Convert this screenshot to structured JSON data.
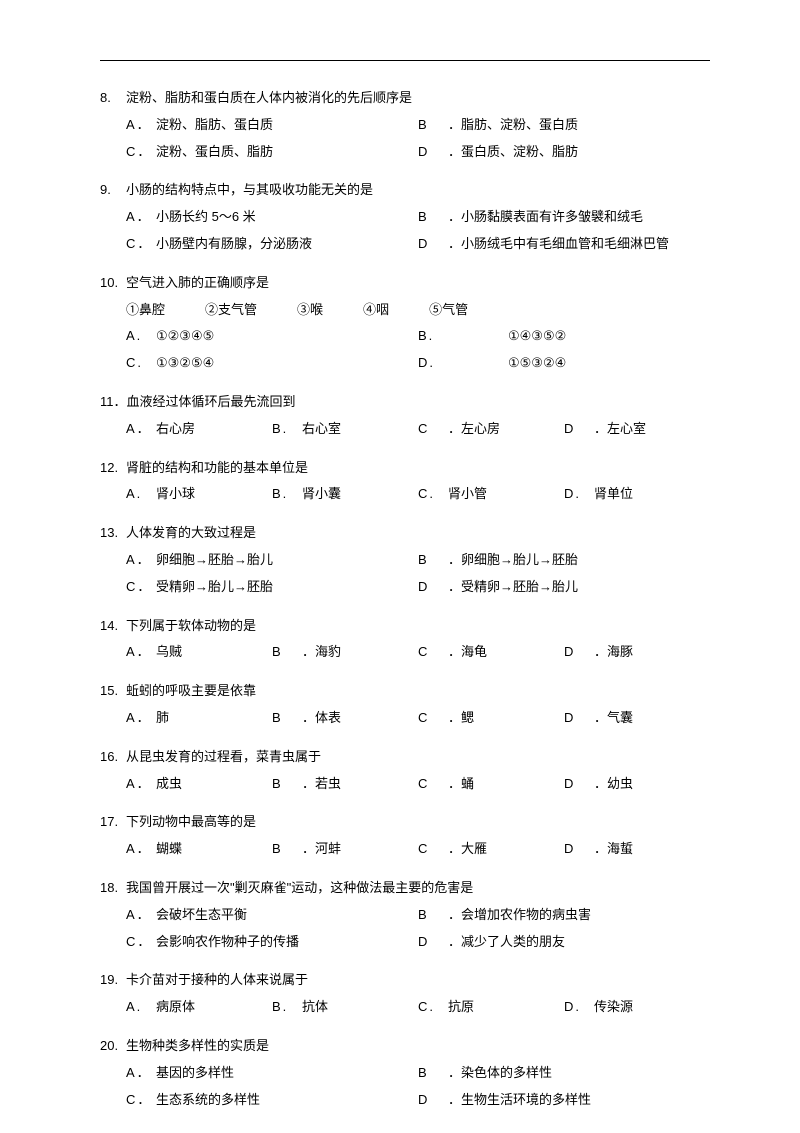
{
  "text_color": "#000000",
  "background_color": "#ffffff",
  "font_size": 13,
  "questions": [
    {
      "num": "8.",
      "stem": "淀粉、脂肪和蛋白质在人体内被消化的先后顺序是",
      "layout": "2col",
      "opts": [
        {
          "l": "A．",
          "t": "淀粉、脂肪、蛋白质"
        },
        {
          "l": "B",
          "t": "．脂肪、淀粉、蛋白质"
        },
        {
          "l": "C．",
          "t": "淀粉、蛋白质、脂肪"
        },
        {
          "l": "D",
          "t": "．蛋白质、淀粉、脂肪"
        }
      ]
    },
    {
      "num": "9.",
      "stem": "小肠的结构特点中，与其吸收功能无关的是",
      "layout": "2col",
      "opts": [
        {
          "l": "A．",
          "t": "小肠长约  5～6 米"
        },
        {
          "l": "B",
          "t": "．小肠黏膜表面有许多皱襞和绒毛"
        },
        {
          "l": "C．",
          "t": "小肠壁内有肠腺，分泌肠液"
        },
        {
          "l": "D",
          "t": "．小肠绒毛中有毛细血管和毛细淋巴管"
        }
      ]
    },
    {
      "num": "10.",
      "stem": "空气进入肺的正确顺序是",
      "layout": "special10",
      "items": [
        "①鼻腔",
        "②支气管",
        "③喉",
        "④咽",
        "⑤气管"
      ],
      "opts": [
        {
          "l": "A.",
          "t": "①②③④⑤"
        },
        {
          "l": "B.",
          "t": "①④③⑤②"
        },
        {
          "l": "C.",
          "t": "①③②⑤④"
        },
        {
          "l": "D.",
          "t": "①⑤③②④"
        }
      ]
    },
    {
      "num": "11．",
      "stem": "血液经过体循环后最先流回到",
      "layout": "4col",
      "opts": [
        {
          "l": "A．",
          "t": "右心房"
        },
        {
          "l": "B.",
          "t": "右心室"
        },
        {
          "l": "C",
          "t": "．左心房"
        },
        {
          "l": "D",
          "t": "．左心室"
        }
      ]
    },
    {
      "num": "12.",
      "stem": "肾脏的结构和功能的基本单位是",
      "layout": "4col",
      "opts": [
        {
          "l": "A.",
          "t": "肾小球"
        },
        {
          "l": "B.",
          "t": "肾小囊"
        },
        {
          "l": "C.",
          "t": "肾小管"
        },
        {
          "l": "D.",
          "t": "肾单位"
        }
      ]
    },
    {
      "num": "13.",
      "stem": "人体发育的大致过程是",
      "layout": "2col",
      "opts": [
        {
          "l": "A．",
          "t": "卵细胞→胚胎→胎儿"
        },
        {
          "l": "B",
          "t": "．卵细胞→胎儿→胚胎"
        },
        {
          "l": "C．",
          "t": "受精卵→胎儿→胚胎"
        },
        {
          "l": "D",
          "t": "．受精卵→胚胎→胎儿"
        }
      ]
    },
    {
      "num": "14.",
      "stem": "下列属于软体动物的是",
      "layout": "4col",
      "opts": [
        {
          "l": "A．",
          "t": "乌贼"
        },
        {
          "l": "B",
          "t": "．海豹"
        },
        {
          "l": "C",
          "t": "．海龟"
        },
        {
          "l": "D",
          "t": "．海豚"
        }
      ]
    },
    {
      "num": "15.",
      "stem": "蚯蚓的呼吸主要是依靠",
      "layout": "4col",
      "opts": [
        {
          "l": "A．",
          "t": "肺"
        },
        {
          "l": "B",
          "t": "．体表"
        },
        {
          "l": "C",
          "t": "．鳃"
        },
        {
          "l": "D",
          "t": "．气囊"
        }
      ]
    },
    {
      "num": "16.",
      "stem": "从昆虫发育的过程看，菜青虫属于",
      "layout": "4col",
      "opts": [
        {
          "l": "A．",
          "t": "成虫"
        },
        {
          "l": "B",
          "t": "．若虫"
        },
        {
          "l": "C",
          "t": "．蛹"
        },
        {
          "l": "D",
          "t": "．幼虫"
        }
      ]
    },
    {
      "num": "17.",
      "stem": "下列动物中最高等的是",
      "layout": "4col",
      "opts": [
        {
          "l": "A．",
          "t": "蝴蝶"
        },
        {
          "l": "B",
          "t": "．河蚌"
        },
        {
          "l": "C",
          "t": "．大雁"
        },
        {
          "l": "D",
          "t": "．海蜇"
        }
      ]
    },
    {
      "num": "18.",
      "stem": "我国曾开展过一次\"剿灭麻雀\"运动，这种做法最主要的危害是",
      "layout": "2col",
      "opts": [
        {
          "l": "A．",
          "t": "会破坏生态平衡"
        },
        {
          "l": "B",
          "t": "．会增加农作物的病虫害"
        },
        {
          "l": "C．",
          "t": "会影响农作物种子的传播"
        },
        {
          "l": "D",
          "t": "．减少了人类的朋友"
        }
      ]
    },
    {
      "num": "19.",
      "stem": "卡介苗对于接种的人体来说属于",
      "layout": "4col",
      "opts": [
        {
          "l": "A.",
          "t": "病原体"
        },
        {
          "l": "B.",
          "t": "抗体"
        },
        {
          "l": "C.",
          "t": "抗原"
        },
        {
          "l": "D.",
          "t": "传染源"
        }
      ]
    },
    {
      "num": "20.",
      "stem": "生物种类多样性的实质是",
      "layout": "2col",
      "opts": [
        {
          "l": "A．",
          "t": "基因的多样性"
        },
        {
          "l": "B",
          "t": "．染色体的多样性"
        },
        {
          "l": "C．",
          "t": "生态系统的多样性"
        },
        {
          "l": "D",
          "t": "．生物生活环境的多样性"
        }
      ]
    }
  ]
}
